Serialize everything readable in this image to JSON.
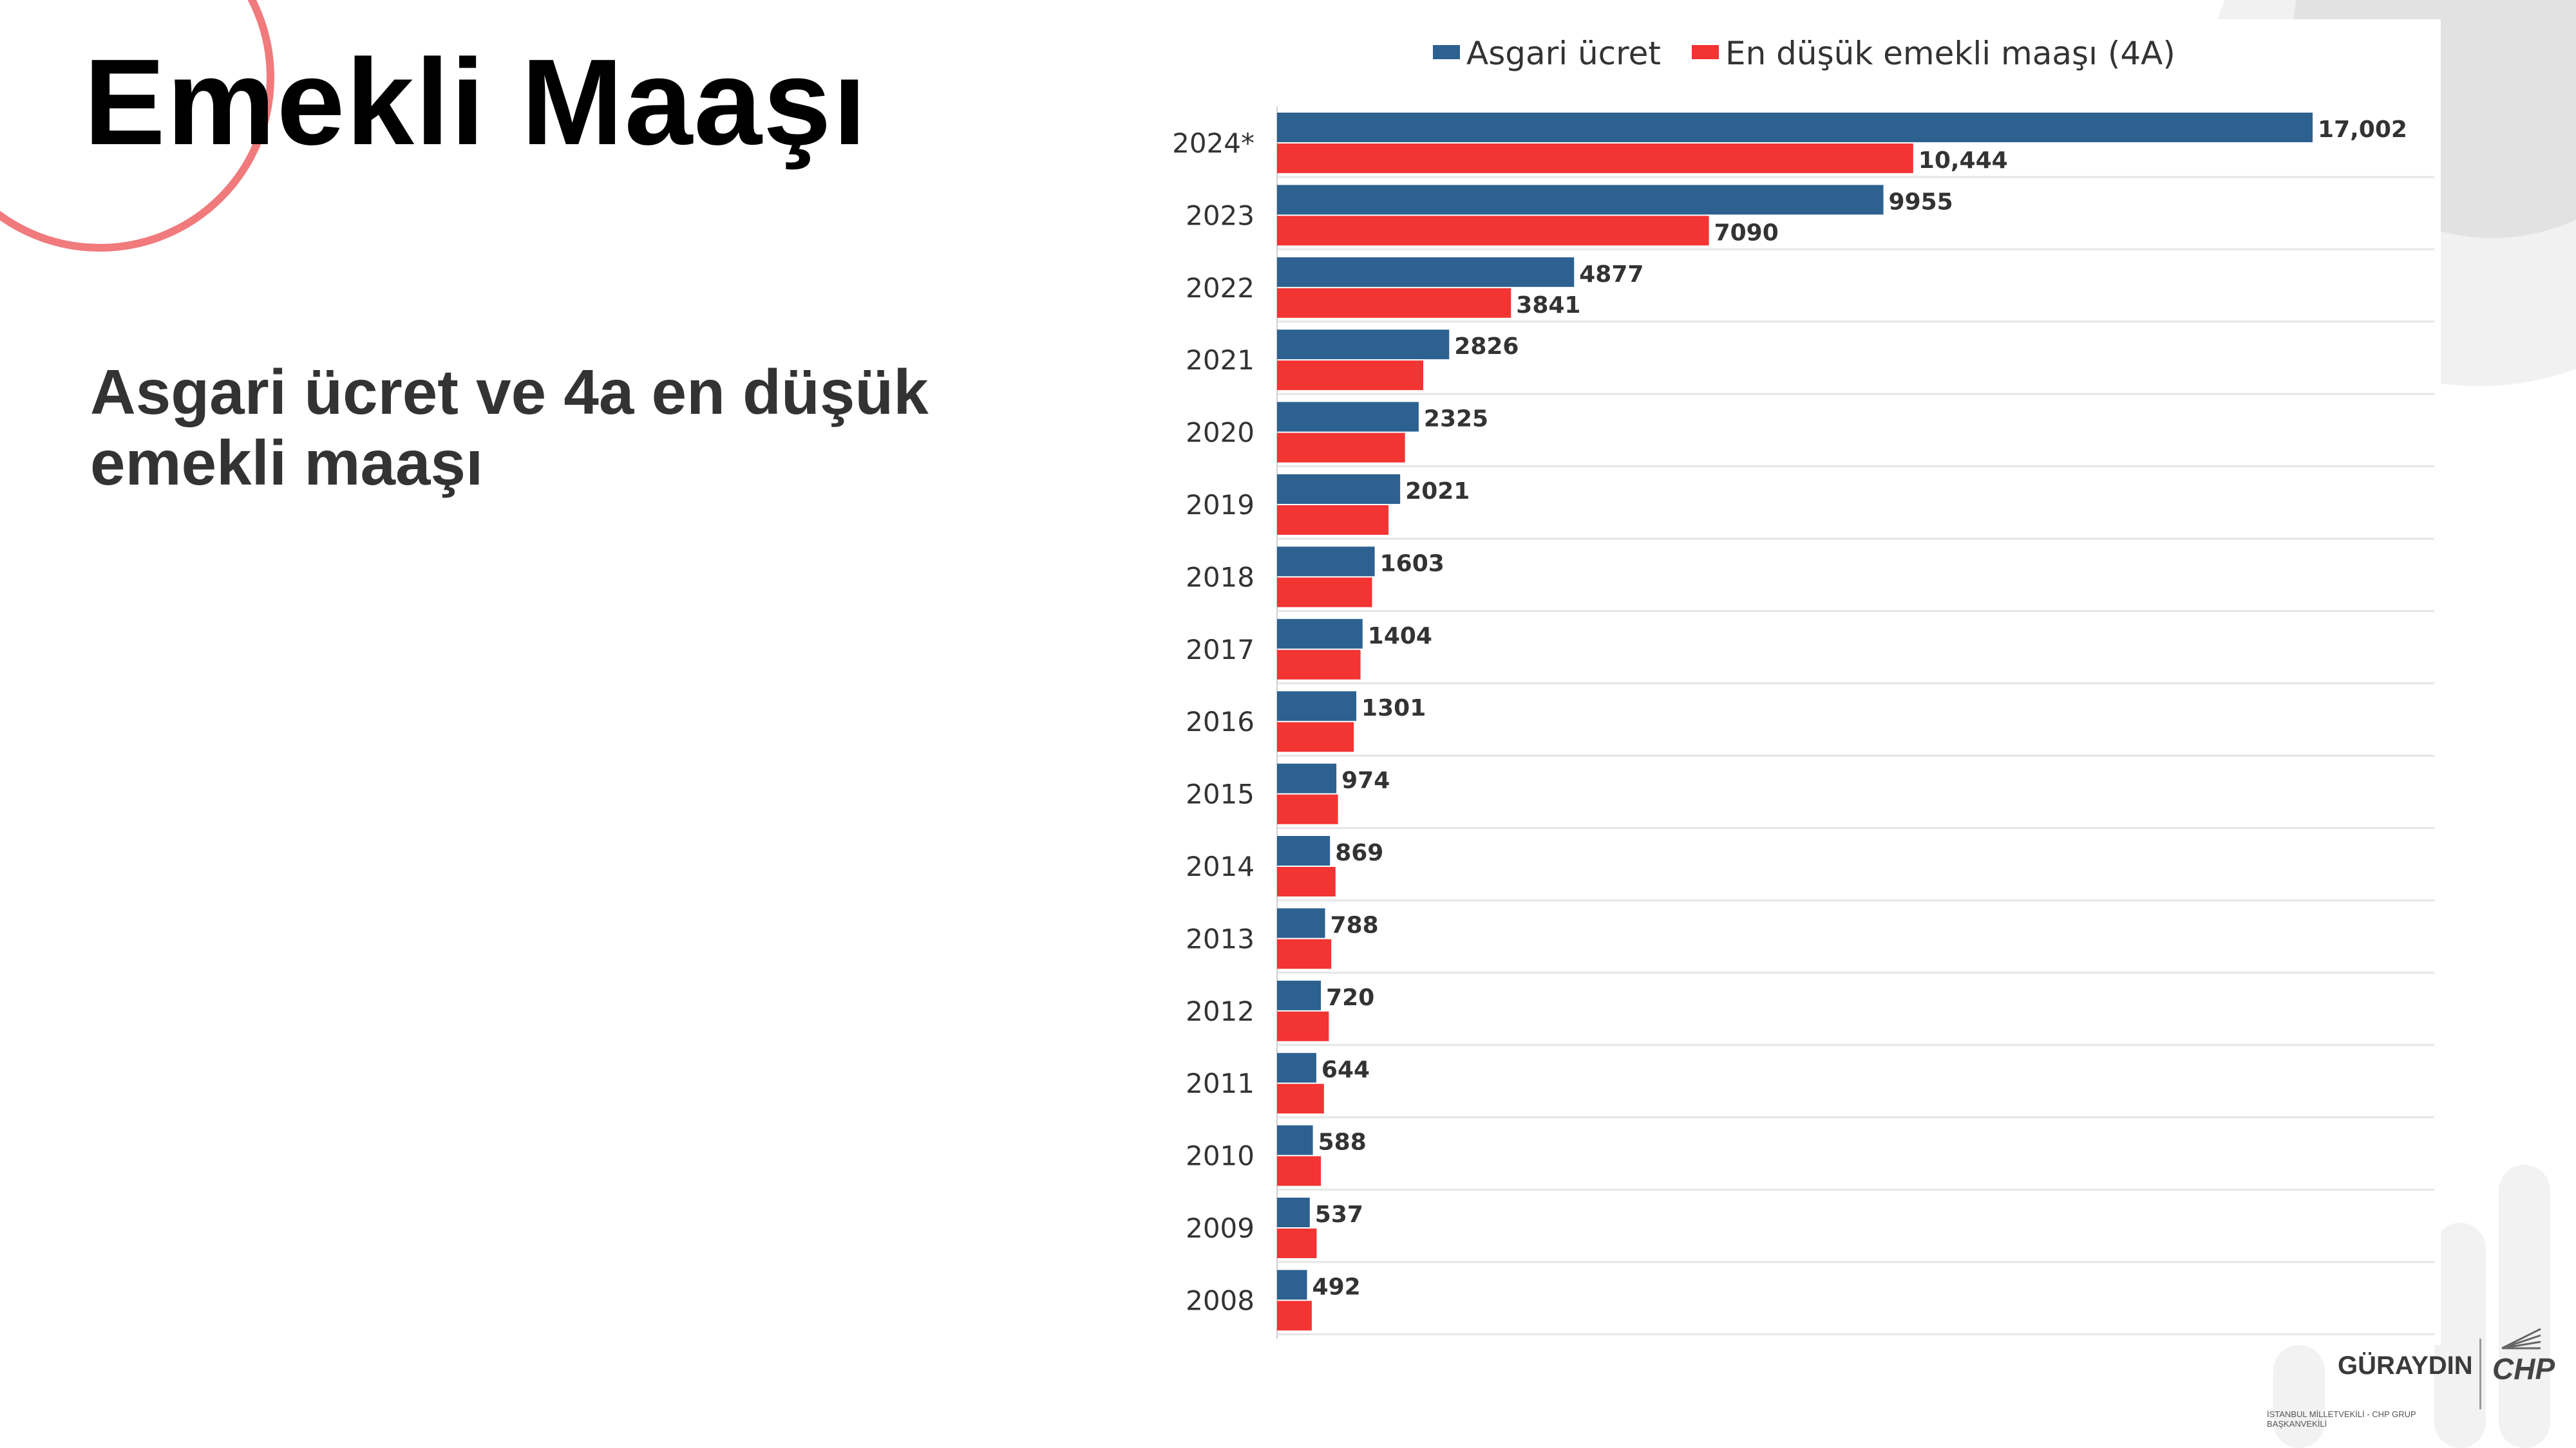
{
  "slide": {
    "title": "Emekli Maaşı",
    "subtitle_line1": "Asgari ücret ve 4a en düşük",
    "subtitle_line2": "emekli maaşı"
  },
  "brand": {
    "name": "GÜRAYDIN",
    "subtitle": "İSTANBUL MİLLETVEKİLİ - CHP GRUP BAŞKANVEKİLİ",
    "logo": "CHP"
  },
  "colors": {
    "series_min_wage": "#2d6190",
    "series_pension": "#f23432",
    "accent_circle": "#f07a7c"
  },
  "chart_data": {
    "type": "bar",
    "orientation": "horizontal",
    "title": "",
    "xlabel": "",
    "ylabel": "",
    "grid": true,
    "legend": "top",
    "categories": [
      "2024*",
      "2023",
      "2022",
      "2021",
      "2020",
      "2019",
      "2018",
      "2017",
      "2016",
      "2015",
      "2014",
      "2013",
      "2012",
      "2011",
      "2010",
      "2009",
      "2008"
    ],
    "xlim": [
      0,
      19000
    ],
    "series": [
      {
        "name": "Asgari ücret",
        "color": "#2d6190",
        "values": [
          17002,
          9955,
          4877,
          2826,
          2325,
          2021,
          1603,
          1404,
          1301,
          974,
          869,
          788,
          720,
          644,
          588,
          537,
          492
        ],
        "labels": [
          "17,002",
          "9955",
          "4877",
          "2826",
          "2325",
          "2021",
          "1603",
          "1404",
          "1301",
          "974",
          "869",
          "788",
          "720",
          "644",
          "588",
          "537",
          "492"
        ]
      },
      {
        "name": "En düşük emekli maaşı (4A)",
        "color": "#f23432",
        "values": [
          10444,
          7090,
          3841,
          2400,
          2100,
          1830,
          1560,
          1370,
          1260,
          1000,
          960,
          890,
          850,
          770,
          720,
          650,
          570
        ],
        "labels": [
          "10,444",
          "7090",
          "3841",
          null,
          null,
          null,
          null,
          null,
          null,
          null,
          null,
          null,
          null,
          null,
          null,
          null,
          null
        ]
      }
    ]
  }
}
